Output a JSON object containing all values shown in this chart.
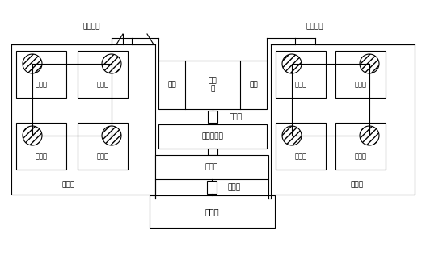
{
  "bg_color": "#ffffff",
  "line_color": "#000000",
  "text_color": "#000000",
  "fig_width": 5.27,
  "fig_height": 3.22,
  "dpi": 100,
  "labels": {
    "paijianggou_left": "排浆地沟",
    "paijianggou_right": "排浆地沟",
    "jinjianguan_left": "进浆管",
    "jinjianguan_right": "进浆管",
    "zuankuang": "钻孔框",
    "famen_left": "阀门",
    "chendianci": "沉淀\n池",
    "famen_right": "阀门",
    "nijiangbeng1": "泥浆泵",
    "nijianghuajingqi": "泥浆净化器",
    "nijiangchi": "泥浆池",
    "nijiangbeng2": "泥浆泵",
    "zaojiangchi": "造浆池"
  }
}
